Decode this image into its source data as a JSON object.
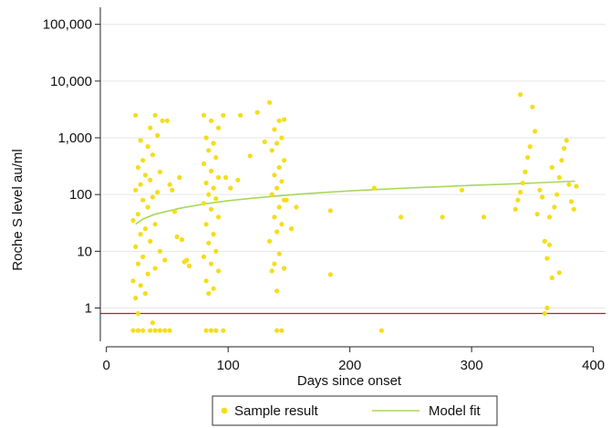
{
  "chart_data": {
    "type": "scatter",
    "xlabel": "Days since onset",
    "ylabel": "Roche S level au/ml",
    "x_ticks": [
      "0",
      "100",
      "200",
      "300",
      "400"
    ],
    "y_ticks": [
      "1",
      "10",
      "100",
      "1,000",
      "10,000",
      "100,000"
    ],
    "xlim": [
      -5,
      410
    ],
    "ylim": [
      0.3,
      160000
    ],
    "y_scale": "log",
    "grid": "horizontal",
    "legend_position": "bottom",
    "reference_line": {
      "y": 0.8,
      "color": "#c8143c"
    },
    "colors": {
      "points": "#f5dd1a",
      "fit": "#a8d85a",
      "grid": "#e6e6e6",
      "axis": "#222222"
    },
    "series": [
      {
        "name": "Sample result",
        "marker": "circle",
        "points": [
          [
            22,
            0.4
          ],
          [
            26,
            0.4
          ],
          [
            30,
            0.4
          ],
          [
            36,
            0.4
          ],
          [
            40,
            0.4
          ],
          [
            44,
            0.4
          ],
          [
            48,
            0.4
          ],
          [
            52,
            0.4
          ],
          [
            82,
            0.4
          ],
          [
            86,
            0.4
          ],
          [
            90,
            0.4
          ],
          [
            96,
            0.4
          ],
          [
            140,
            0.4
          ],
          [
            144,
            0.4
          ],
          [
            226,
            0.4
          ],
          [
            26,
            0.8
          ],
          [
            38,
            0.55
          ],
          [
            24,
            1.5
          ],
          [
            32,
            1.8
          ],
          [
            28,
            2.5
          ],
          [
            22,
            3
          ],
          [
            34,
            4
          ],
          [
            26,
            6
          ],
          [
            40,
            5
          ],
          [
            30,
            8
          ],
          [
            48,
            7
          ],
          [
            24,
            12
          ],
          [
            36,
            15
          ],
          [
            44,
            10
          ],
          [
            28,
            20
          ],
          [
            32,
            25
          ],
          [
            22,
            35
          ],
          [
            40,
            30
          ],
          [
            26,
            45
          ],
          [
            34,
            60
          ],
          [
            30,
            80
          ],
          [
            38,
            90
          ],
          [
            24,
            120
          ],
          [
            42,
            110
          ],
          [
            28,
            150
          ],
          [
            36,
            180
          ],
          [
            32,
            220
          ],
          [
            26,
            300
          ],
          [
            44,
            250
          ],
          [
            30,
            400
          ],
          [
            38,
            500
          ],
          [
            34,
            700
          ],
          [
            28,
            900
          ],
          [
            42,
            1100
          ],
          [
            36,
            1500
          ],
          [
            24,
            2500
          ],
          [
            40,
            2500
          ],
          [
            46,
            2000
          ],
          [
            50,
            2000
          ],
          [
            58,
            18
          ],
          [
            62,
            16
          ],
          [
            56,
            50
          ],
          [
            64,
            6.5
          ],
          [
            66,
            7
          ],
          [
            68,
            5.5
          ],
          [
            54,
            120
          ],
          [
            60,
            200
          ],
          [
            52,
            150
          ],
          [
            84,
            1.8
          ],
          [
            88,
            2.2
          ],
          [
            82,
            3
          ],
          [
            92,
            4.5
          ],
          [
            86,
            6
          ],
          [
            80,
            8
          ],
          [
            90,
            10
          ],
          [
            84,
            14
          ],
          [
            88,
            20
          ],
          [
            82,
            30
          ],
          [
            92,
            40
          ],
          [
            86,
            55
          ],
          [
            80,
            70
          ],
          [
            90,
            85
          ],
          [
            84,
            100
          ],
          [
            88,
            130
          ],
          [
            82,
            160
          ],
          [
            92,
            200
          ],
          [
            86,
            260
          ],
          [
            80,
            350
          ],
          [
            90,
            450
          ],
          [
            84,
            600
          ],
          [
            88,
            800
          ],
          [
            82,
            1000
          ],
          [
            92,
            1500
          ],
          [
            86,
            2000
          ],
          [
            80,
            2500
          ],
          [
            96,
            2500
          ],
          [
            98,
            200
          ],
          [
            102,
            130
          ],
          [
            108,
            180
          ],
          [
            110,
            2500
          ],
          [
            118,
            480
          ],
          [
            124,
            2800
          ],
          [
            130,
            850
          ],
          [
            134,
            4200
          ],
          [
            136,
            4.5
          ],
          [
            140,
            2
          ],
          [
            138,
            6
          ],
          [
            142,
            9
          ],
          [
            146,
            5
          ],
          [
            134,
            15
          ],
          [
            140,
            22
          ],
          [
            144,
            30
          ],
          [
            138,
            40
          ],
          [
            142,
            60
          ],
          [
            146,
            80
          ],
          [
            136,
            100
          ],
          [
            140,
            130
          ],
          [
            144,
            170
          ],
          [
            138,
            220
          ],
          [
            142,
            300
          ],
          [
            146,
            400
          ],
          [
            136,
            600
          ],
          [
            140,
            800
          ],
          [
            144,
            1000
          ],
          [
            138,
            1400
          ],
          [
            142,
            2000
          ],
          [
            146,
            2100
          ],
          [
            148,
            80
          ],
          [
            152,
            25
          ],
          [
            156,
            60
          ],
          [
            184,
            52
          ],
          [
            184,
            3.9
          ],
          [
            220,
            130
          ],
          [
            242,
            40
          ],
          [
            276,
            40
          ],
          [
            292,
            120
          ],
          [
            310,
            40
          ],
          [
            336,
            55
          ],
          [
            338,
            80
          ],
          [
            340,
            110
          ],
          [
            342,
            160
          ],
          [
            344,
            250
          ],
          [
            346,
            450
          ],
          [
            348,
            700
          ],
          [
            350,
            3500
          ],
          [
            352,
            1300
          ],
          [
            354,
            45
          ],
          [
            356,
            120
          ],
          [
            358,
            90
          ],
          [
            360,
            15
          ],
          [
            362,
            7.5
          ],
          [
            364,
            40
          ],
          [
            366,
            3.4
          ],
          [
            368,
            60
          ],
          [
            370,
            100
          ],
          [
            372,
            200
          ],
          [
            374,
            400
          ],
          [
            376,
            650
          ],
          [
            378,
            900
          ],
          [
            380,
            150
          ],
          [
            382,
            75
          ],
          [
            384,
            55
          ],
          [
            386,
            140
          ],
          [
            360,
            0.8
          ],
          [
            362,
            1
          ],
          [
            340,
            5800
          ],
          [
            364,
            13
          ],
          [
            372,
            4.2
          ],
          [
            366,
            300
          ]
        ]
      },
      {
        "name": "Model fit",
        "marker": "line",
        "points": [
          [
            24,
            30
          ],
          [
            30,
            37
          ],
          [
            40,
            45
          ],
          [
            60,
            57
          ],
          [
            80,
            68
          ],
          [
            100,
            78
          ],
          [
            120,
            86
          ],
          [
            140,
            94
          ],
          [
            160,
            102
          ],
          [
            180,
            109
          ],
          [
            200,
            116
          ],
          [
            220,
            122
          ],
          [
            240,
            128
          ],
          [
            260,
            134
          ],
          [
            280,
            139
          ],
          [
            300,
            145
          ],
          [
            320,
            150
          ],
          [
            340,
            156
          ],
          [
            360,
            163
          ],
          [
            385,
            172
          ]
        ]
      }
    ]
  }
}
